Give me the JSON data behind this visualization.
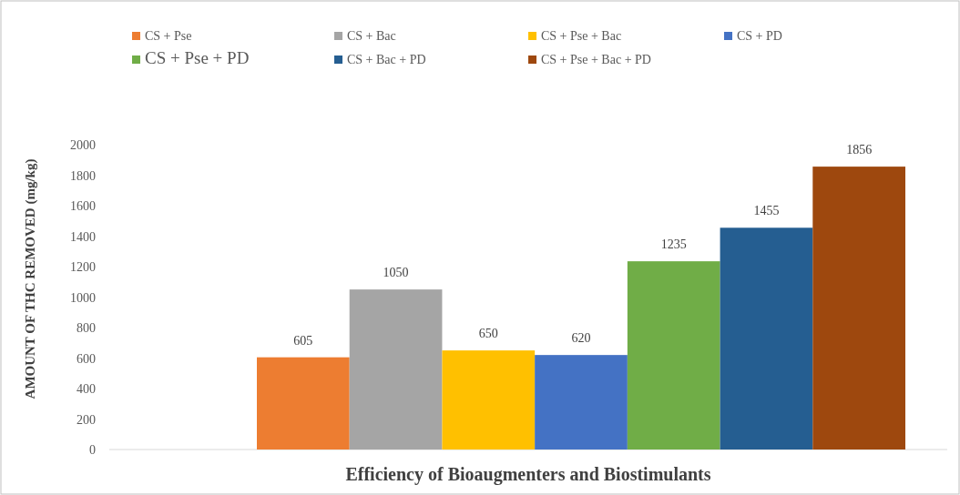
{
  "chart_data": {
    "type": "bar",
    "xlabel": "Efficiency of Bioaugmenters and Biostimulants",
    "ylabel": "AMOUNT OF THC REMOVED (mg/kg)",
    "categories": [
      null
    ],
    "series": [
      {
        "name": "CS + Pse",
        "color": "#ed7d31",
        "values": [
          605
        ]
      },
      {
        "name": "CS + Bac",
        "color": "#a5a5a5",
        "values": [
          1050
        ]
      },
      {
        "name": "CS + Pse + Bac",
        "color": "#ffc000",
        "values": [
          650
        ]
      },
      {
        "name": "CS + PD",
        "color": "#4472c4",
        "values": [
          620
        ]
      },
      {
        "name": "CS + Pse + PD",
        "color": "#70ad47",
        "values": [
          1235
        ]
      },
      {
        "name": "CS + Bac + PD",
        "color": "#255e91",
        "values": [
          1455
        ]
      },
      {
        "name": "CS + Pse + Bac + PD",
        "color": "#9e480e",
        "values": [
          1856
        ]
      }
    ],
    "ylim": [
      0,
      2000
    ],
    "yticks": [
      0,
      200,
      400,
      600,
      800,
      1000,
      1200,
      1400,
      1600,
      1800,
      2000
    ],
    "grid": false,
    "legend": "top",
    "data_labels": true
  }
}
